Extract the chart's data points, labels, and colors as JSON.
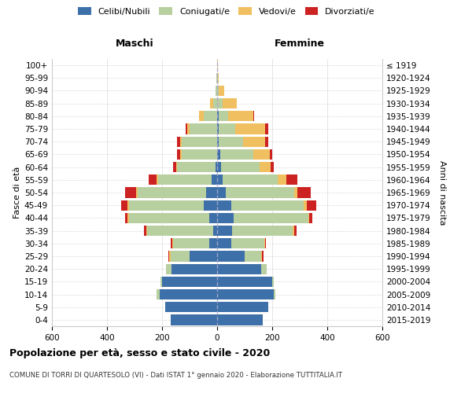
{
  "age_groups": [
    "0-4",
    "5-9",
    "10-14",
    "15-19",
    "20-24",
    "25-29",
    "30-34",
    "35-39",
    "40-44",
    "45-49",
    "50-54",
    "55-59",
    "60-64",
    "65-69",
    "70-74",
    "75-79",
    "80-84",
    "85-89",
    "90-94",
    "95-99",
    "100+"
  ],
  "birth_years": [
    "2015-2019",
    "2010-2014",
    "2005-2009",
    "2000-2004",
    "1995-1999",
    "1990-1994",
    "1985-1989",
    "1980-1984",
    "1975-1979",
    "1970-1974",
    "1965-1969",
    "1960-1964",
    "1955-1959",
    "1950-1954",
    "1945-1949",
    "1940-1944",
    "1935-1939",
    "1930-1934",
    "1925-1929",
    "1920-1924",
    "≤ 1919"
  ],
  "males": {
    "celibi": [
      170,
      190,
      210,
      200,
      165,
      100,
      30,
      15,
      30,
      50,
      40,
      20,
      5,
      0,
      0,
      0,
      0,
      0,
      0,
      0,
      0
    ],
    "coniugati": [
      0,
      0,
      10,
      5,
      20,
      70,
      130,
      240,
      290,
      270,
      250,
      195,
      140,
      130,
      130,
      100,
      50,
      15,
      5,
      2,
      0
    ],
    "vedovi": [
      0,
      0,
      0,
      0,
      0,
      3,
      3,
      3,
      5,
      5,
      5,
      5,
      5,
      5,
      5,
      10,
      15,
      10,
      2,
      0,
      0
    ],
    "divorziati": [
      0,
      0,
      0,
      0,
      0,
      5,
      5,
      8,
      10,
      25,
      40,
      30,
      10,
      10,
      10,
      5,
      0,
      0,
      0,
      0,
      0
    ]
  },
  "females": {
    "nubili": [
      165,
      185,
      205,
      200,
      160,
      100,
      50,
      55,
      60,
      50,
      30,
      20,
      15,
      10,
      5,
      5,
      5,
      0,
      0,
      0,
      0
    ],
    "coniugate": [
      0,
      0,
      5,
      5,
      20,
      60,
      120,
      220,
      270,
      265,
      250,
      200,
      140,
      120,
      90,
      60,
      35,
      20,
      5,
      2,
      0
    ],
    "vedove": [
      0,
      0,
      0,
      0,
      0,
      3,
      3,
      5,
      5,
      10,
      10,
      30,
      40,
      60,
      80,
      110,
      90,
      50,
      20,
      5,
      2
    ],
    "divorziate": [
      0,
      0,
      0,
      0,
      0,
      5,
      5,
      8,
      10,
      35,
      50,
      40,
      10,
      10,
      10,
      10,
      5,
      0,
      0,
      0,
      0
    ]
  },
  "colors": {
    "celibi": "#3d6fa8",
    "coniugati": "#b8cfa0",
    "vedovi": "#f0c060",
    "divorziati": "#cc2222"
  },
  "title": "Popolazione per età, sesso e stato civile - 2020",
  "subtitle": "COMUNE DI TORRI DI QUARTESOLO (VI) - Dati ISTAT 1° gennaio 2020 - Elaborazione TUTTITALIA.IT",
  "xlabel_left": "Maschi",
  "xlabel_right": "Femmine",
  "ylabel_left": "Fasce di età",
  "ylabel_right": "Anni di nascita",
  "xlim": 600,
  "bg_color": "#ffffff",
  "grid_color": "#cccccc",
  "bar_height": 0.82
}
